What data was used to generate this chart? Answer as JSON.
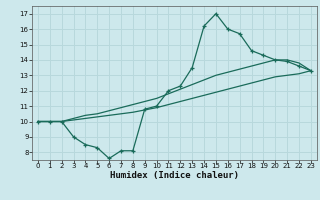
{
  "xlabel": "Humidex (Indice chaleur)",
  "bg_color": "#cde8ec",
  "grid_color": "#b8d8dc",
  "line_color": "#1a6b5a",
  "xlim": [
    -0.5,
    23.5
  ],
  "ylim": [
    7.5,
    17.5
  ],
  "xticks": [
    0,
    1,
    2,
    3,
    4,
    5,
    6,
    7,
    8,
    9,
    10,
    11,
    12,
    13,
    14,
    15,
    16,
    17,
    18,
    19,
    20,
    21,
    22,
    23
  ],
  "yticks": [
    8,
    9,
    10,
    11,
    12,
    13,
    14,
    15,
    16,
    17
  ],
  "line1_x": [
    0,
    1,
    2,
    3,
    4,
    5,
    6,
    7,
    8,
    9,
    10,
    11,
    12,
    13,
    14,
    15,
    16,
    17,
    18,
    19,
    20,
    21,
    22,
    23
  ],
  "line1_y": [
    10,
    10,
    10,
    9,
    8.5,
    8.3,
    7.6,
    8.1,
    8.1,
    10.8,
    11,
    12,
    12.3,
    13.5,
    16.2,
    17,
    16,
    15.7,
    14.6,
    14.3,
    14,
    13.9,
    13.6,
    13.3
  ],
  "line2_x": [
    0,
    1,
    2,
    3,
    4,
    5,
    6,
    7,
    8,
    9,
    10,
    11,
    12,
    13,
    14,
    15,
    16,
    17,
    18,
    19,
    20,
    21,
    22,
    23
  ],
  "line2_y": [
    10,
    10,
    10,
    10.2,
    10.4,
    10.5,
    10.7,
    10.9,
    11.1,
    11.3,
    11.5,
    11.8,
    12.1,
    12.4,
    12.7,
    13.0,
    13.2,
    13.4,
    13.6,
    13.8,
    14.0,
    14.0,
    13.8,
    13.3
  ],
  "line3_x": [
    0,
    1,
    2,
    3,
    4,
    5,
    6,
    7,
    8,
    9,
    10,
    11,
    12,
    13,
    14,
    15,
    16,
    17,
    18,
    19,
    20,
    21,
    22,
    23
  ],
  "line3_y": [
    10,
    10,
    10,
    10.1,
    10.2,
    10.3,
    10.4,
    10.5,
    10.6,
    10.75,
    10.9,
    11.1,
    11.3,
    11.5,
    11.7,
    11.9,
    12.1,
    12.3,
    12.5,
    12.7,
    12.9,
    13.0,
    13.1,
    13.3
  ],
  "tick_fontsize": 5,
  "xlabel_fontsize": 6.5
}
